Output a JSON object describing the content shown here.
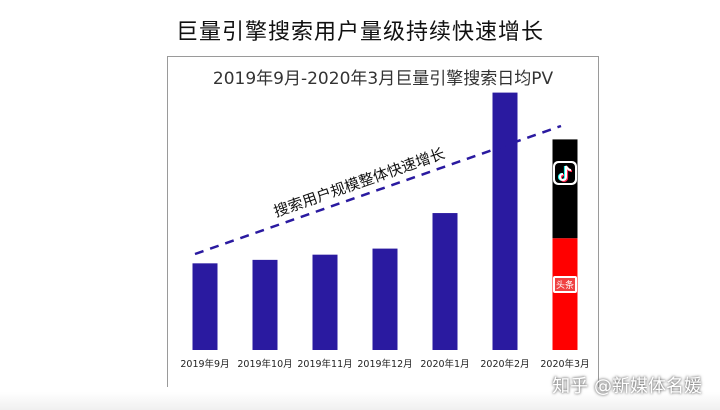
{
  "page_title": "巨量引擎搜索用户量级持续快速增长",
  "watermark": "知乎 @新媒体名媛",
  "chart_data": {
    "type": "bar",
    "title": "2019年9月-2020年3月巨量引擎搜索日均PV",
    "categories": [
      "2019年9月",
      "2019年10月",
      "2019年11月",
      "2019年12月",
      "2020年1月",
      "2020年2月",
      "2020年3月"
    ],
    "values": [
      100,
      104,
      110,
      117,
      158,
      297,
      243
    ],
    "stacked_last": {
      "category": "2020年3月",
      "segments": [
        {
          "name": "头条",
          "value": 129,
          "color": "#ff0000"
        },
        {
          "name": "抖音",
          "value": 114,
          "color": "#000000"
        }
      ]
    },
    "bar_color": "#2a1aa0",
    "trend_annotation": "搜索用户规模整体快速增长",
    "ylim": [
      0,
      300
    ],
    "xlabel": "",
    "ylabel": "",
    "grid": false,
    "legend": "none",
    "icons": {
      "douyin": "douyin-logo-icon",
      "toutiao": "toutiao-logo-icon"
    },
    "toutiao_label": "头条"
  }
}
